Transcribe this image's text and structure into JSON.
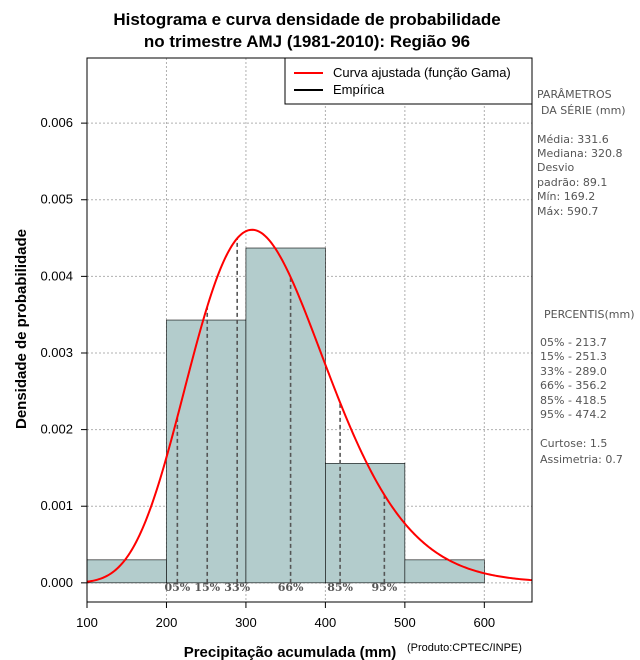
{
  "chart_data": {
    "type": "bar",
    "title_line1": "Histograma e curva densidade de probabilidade",
    "title_line2": "no trimestre AMJ (1981-2010): Região 96",
    "xlabel": "Precipitação acumulada (mm)",
    "ylabel": "Densidade de probabilidade",
    "credit": "(Produto:CPTEC/INPE)",
    "xlim": [
      100,
      660
    ],
    "ylim": [
      -0.00025,
      0.00685
    ],
    "x_ticks": [
      100,
      200,
      300,
      400,
      500,
      600
    ],
    "y_ticks": [
      0.0,
      0.001,
      0.002,
      0.003,
      0.004,
      0.005,
      0.006
    ],
    "y_tick_labels": [
      "0.000",
      "0.001",
      "0.002",
      "0.003",
      "0.004",
      "0.005",
      "0.006"
    ],
    "grid": true,
    "bin_edges": [
      100,
      200,
      300,
      400,
      500,
      600
    ],
    "values": [
      0.0003,
      0.00343,
      0.00437,
      0.00156,
      0.0003
    ],
    "bar_color": "#b3cccc",
    "curve": {
      "name": "Curva ajustada (função Gama)",
      "distribution": "gamma",
      "shape": 13.8,
      "scale": 24.04,
      "color": "#ff0000"
    },
    "legend": {
      "position": "top-right",
      "entries": [
        {
          "label": "Curva ajustada (função Gama)",
          "color": "#ff0000"
        },
        {
          "label": "Empírica",
          "color": "#000000"
        }
      ]
    },
    "percentiles": [
      {
        "label": "05%",
        "x": 213.7
      },
      {
        "label": "15%",
        "x": 251.3
      },
      {
        "label": "33%",
        "x": 289.0
      },
      {
        "label": "66%",
        "x": 356.2
      },
      {
        "label": "85%",
        "x": 418.5
      },
      {
        "label": "95%",
        "x": 474.2
      }
    ]
  },
  "stats_panel": {
    "header1": "PARÂMETROS",
    "header2": "DA SÉRIE (mm)",
    "lines": [
      "Média:  331.6",
      "Mediana:  320.8",
      "Desvio",
      "padrão:  89.1",
      "Mín:  169.2",
      "Máx:  590.7"
    ],
    "percentis_header": "PERCENTIS(mm)",
    "percentis_lines": [
      "05% -  213.7",
      "15% -  251.3",
      "33% -  289.0",
      "66% -  356.2",
      "85% -  418.5",
      "95% -  474.2"
    ],
    "extra_lines": [
      "Curtose:  1.5",
      "Assimetria:  0.7"
    ]
  }
}
